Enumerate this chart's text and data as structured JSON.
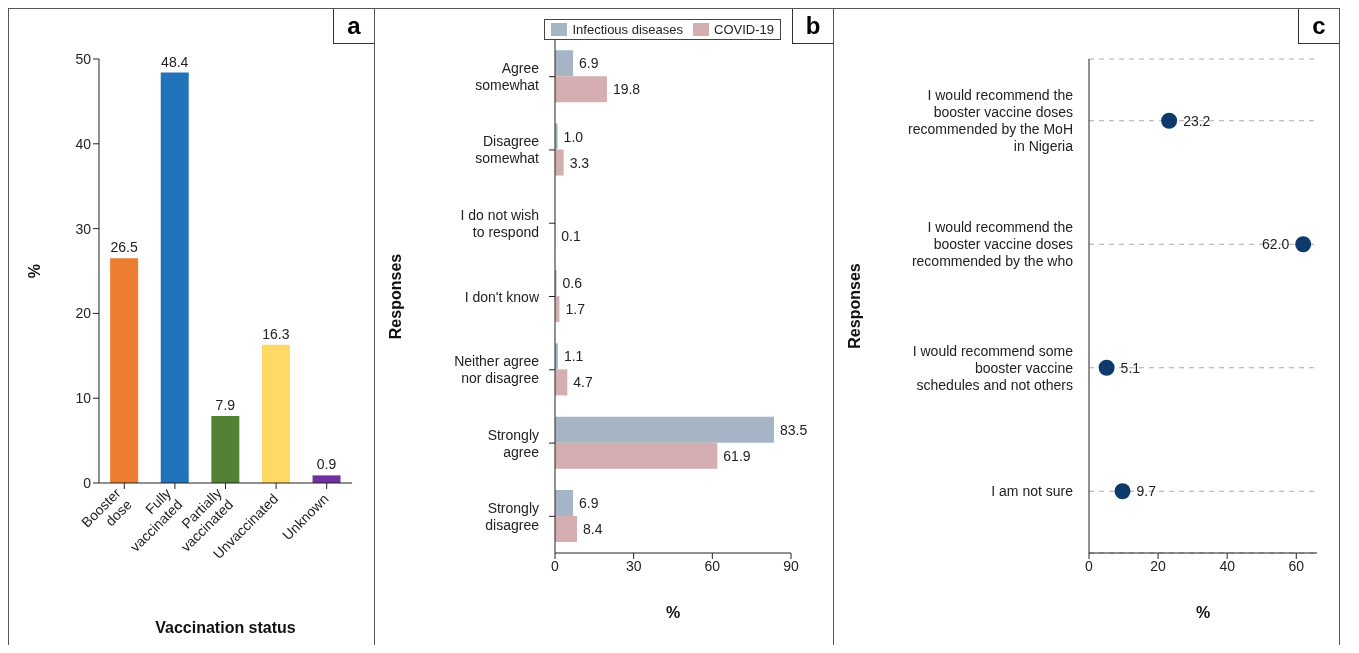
{
  "chart_data": [
    {
      "type": "bar",
      "annotations": [
        "a"
      ],
      "xlabel": "Vaccination status",
      "ylabel": "%",
      "categories": [
        "Booster dose",
        "Fully vaccinated",
        "Partially vaccinated",
        "Unvaccinated",
        "Unknown"
      ],
      "values": [
        26.5,
        48.4,
        7.9,
        16.3,
        0.9
      ],
      "colors": [
        "#ed7d31",
        "#2273ba",
        "#548235",
        "#ffd966",
        "#7030a0"
      ],
      "ylim": [
        0,
        50
      ],
      "yticks": [
        0,
        10,
        20,
        30,
        40,
        50
      ],
      "data_labels": true,
      "grid": false,
      "legend": false
    },
    {
      "type": "bar",
      "orientation": "horizontal",
      "annotations": [
        "b"
      ],
      "xlabel": "%",
      "ylabel": "Responses",
      "categories": [
        "Agree somewhat",
        "Disagree somewhat",
        "I do not wish to respond",
        "I don't know",
        "Neither agree nor disagree",
        "Strongly agree",
        "Strongly disagree"
      ],
      "series": [
        {
          "name": "Infectious diseases",
          "color": "#a5b5c6",
          "values": [
            6.9,
            1.0,
            0,
            0.6,
            1.1,
            83.5,
            6.9
          ],
          "value_labels": [
            "6.9",
            "1.0",
            null,
            "0.6",
            "1.1",
            "83.5",
            "6.9"
          ]
        },
        {
          "name": "COVID-19",
          "color": "#d4aeb1",
          "values": [
            19.8,
            3.3,
            0.1,
            1.7,
            4.7,
            61.9,
            8.4
          ],
          "value_labels": [
            "19.8",
            "3.3",
            "0.1",
            "1.7",
            "4.7",
            "61.9",
            "8.4"
          ]
        }
      ],
      "xlim": [
        0,
        90
      ],
      "xticks": [
        0,
        30,
        60,
        90
      ],
      "legend": "top right",
      "grid": false
    },
    {
      "type": "scatter",
      "orientation": "horizontal",
      "annotations": [
        "c"
      ],
      "xlabel": "%",
      "ylabel": "Responses",
      "categories": [
        "I would recommend the booster vaccine doses recommended by the MoH in Nigeria",
        "I would recommend the booster vaccine doses recommended by the who",
        "I would recommend some booster vaccine schedules and not others",
        "I am not sure"
      ],
      "values": [
        23.2,
        62.0,
        5.1,
        9.7
      ],
      "value_labels": [
        "23.2",
        "62.0",
        "5.1",
        "9.7"
      ],
      "color": "#0d3a6b",
      "marker": "circle",
      "xlim": [
        0,
        66
      ],
      "xticks": [
        0,
        20,
        40,
        60
      ],
      "grid": "y"
    }
  ]
}
